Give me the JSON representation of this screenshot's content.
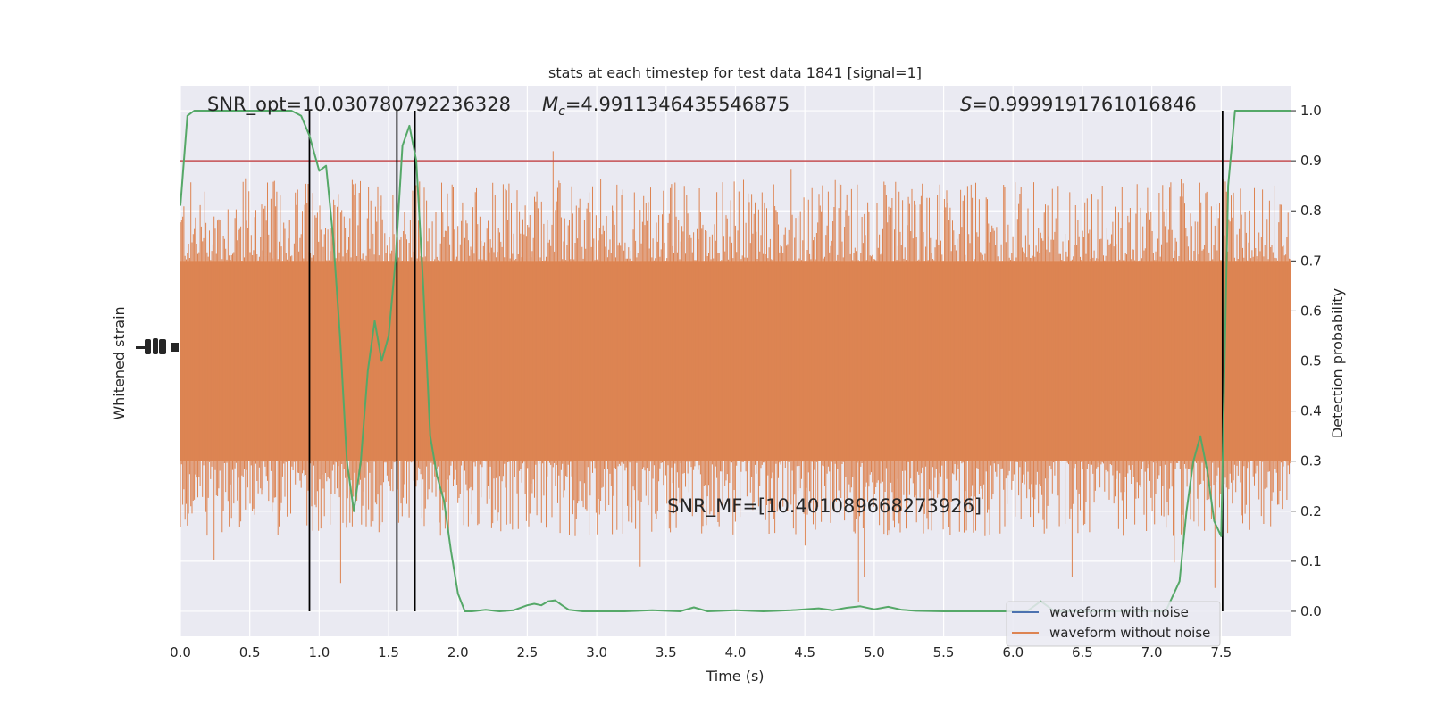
{
  "chart_data": {
    "type": "line",
    "title": "stats at each timestep for test data 1841 [signal=1]",
    "xlabel": "Time (s)",
    "ylabel_left": "Whitened strain",
    "ylabel_right": "Detection probability",
    "xlim": [
      0.0,
      8.0
    ],
    "ylim_right": [
      -0.05,
      1.05
    ],
    "x_ticks": [
      "0.0",
      "0.5",
      "1.0",
      "1.5",
      "2.0",
      "2.5",
      "3.0",
      "3.5",
      "4.0",
      "4.5",
      "5.0",
      "5.5",
      "6.0",
      "6.5",
      "7.0",
      "7.5"
    ],
    "y_right_ticks": [
      "0.0",
      "0.1",
      "0.2",
      "0.3",
      "0.4",
      "0.5",
      "0.6",
      "0.7",
      "0.8",
      "0.9",
      "1.0"
    ],
    "grid": true,
    "background": "#eaeaf2",
    "threshold": {
      "value": 0.9,
      "color": "#c44e52"
    },
    "vlines": [
      0.93,
      1.56,
      1.69,
      7.51
    ],
    "annotations": {
      "snr_opt": "SNR_opt=10.030780792236328",
      "mc_symbol": "M",
      "mc_sub": "c",
      "mc_value": "=4.9911346435546875",
      "s_symbol": "S",
      "s_value": "=0.9999191761016846",
      "snr_mf": "SNR_MF=[10.401089668273926]"
    },
    "legend": {
      "placement": "lower-right",
      "entries": [
        {
          "label": "waveform with noise",
          "color": "#4c72b0"
        },
        {
          "label": "waveform without noise",
          "color": "#dd8452"
        }
      ]
    },
    "series": [
      {
        "color": "#55a868",
        "x": [
          0.0,
          0.05,
          0.1,
          0.2,
          0.3,
          0.4,
          0.5,
          0.6,
          0.7,
          0.8,
          0.87,
          0.93,
          1.0,
          1.05,
          1.1,
          1.15,
          1.2,
          1.25,
          1.3,
          1.35,
          1.4,
          1.45,
          1.5,
          1.55,
          1.6,
          1.65,
          1.7,
          1.75,
          1.8,
          1.85,
          1.9,
          1.95,
          2.0,
          2.05,
          2.1,
          2.2,
          2.3,
          2.4,
          2.5,
          2.55,
          2.6,
          2.65,
          2.7,
          2.75,
          2.8,
          2.9,
          3.0,
          3.2,
          3.4,
          3.6,
          3.7,
          3.8,
          3.9,
          4.0,
          4.2,
          4.4,
          4.5,
          4.6,
          4.7,
          4.8,
          4.9,
          5.0,
          5.1,
          5.2,
          5.3,
          5.5,
          5.7,
          5.9,
          6.0,
          6.1,
          6.2,
          6.3,
          6.5,
          6.7,
          6.9,
          7.0,
          7.1,
          7.2,
          7.25,
          7.3,
          7.35,
          7.4,
          7.45,
          7.5,
          7.55,
          7.6,
          7.65,
          7.7,
          7.8,
          8.0
        ],
        "y": [
          0.81,
          0.99,
          1.0,
          1.0,
          1.0,
          1.0,
          1.0,
          1.0,
          1.0,
          1.0,
          0.99,
          0.95,
          0.88,
          0.89,
          0.75,
          0.55,
          0.3,
          0.2,
          0.3,
          0.48,
          0.58,
          0.5,
          0.55,
          0.7,
          0.93,
          0.97,
          0.9,
          0.65,
          0.35,
          0.27,
          0.22,
          0.12,
          0.035,
          0.0,
          0.0,
          0.003,
          0.0,
          0.002,
          0.012,
          0.015,
          0.012,
          0.02,
          0.022,
          0.012,
          0.003,
          0.0,
          0.0,
          0.0,
          0.002,
          0.0,
          0.008,
          0.0,
          0.001,
          0.002,
          0.0,
          0.002,
          0.004,
          0.006,
          0.002,
          0.007,
          0.01,
          0.004,
          0.009,
          0.003,
          0.001,
          0.0,
          0.0,
          0.0,
          0.0,
          0.0,
          0.02,
          0.0,
          0.0,
          0.0,
          0.0,
          0.0,
          0.0,
          0.06,
          0.2,
          0.3,
          0.35,
          0.28,
          0.18,
          0.15,
          0.85,
          1.0,
          1.0,
          1.0,
          1.0,
          1.0
        ]
      }
    ]
  }
}
